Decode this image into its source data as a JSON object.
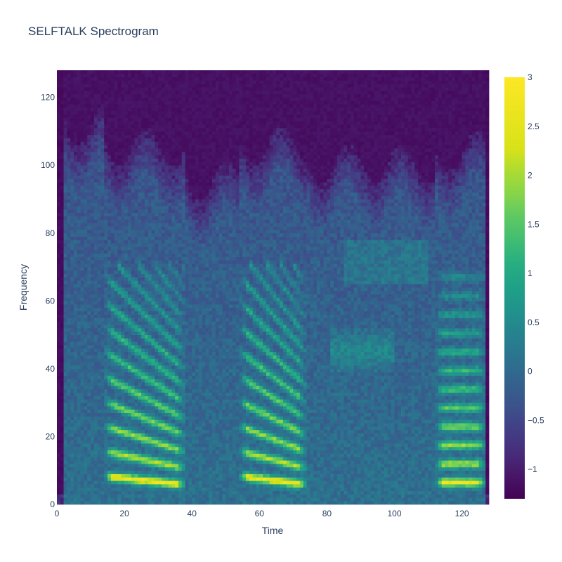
{
  "chart_data": {
    "type": "heatmap",
    "title": "SELFTALK Spectrogram",
    "xlabel": "Time",
    "ylabel": "Frequency",
    "xlim": [
      0,
      127
    ],
    "ylim": [
      0,
      127
    ],
    "x_ticks": [
      "0",
      "20",
      "40",
      "60",
      "80",
      "100",
      "120"
    ],
    "y_ticks": [
      "0",
      "20",
      "40",
      "60",
      "80",
      "100",
      "120"
    ],
    "colorbar": {
      "colorscale": "Viridis",
      "zmin": -1.3,
      "zmax": 3,
      "ticks": [
        "3",
        "2.5",
        "2",
        "1.5",
        "1",
        "0.5",
        "0",
        "−0.5",
        "−1"
      ]
    },
    "segments": [
      {
        "start": 2,
        "end": 15,
        "kind": "noise",
        "top": 112
      },
      {
        "start": 14,
        "end": 38,
        "kind": "voiced",
        "f0": 6.0,
        "top": 105
      },
      {
        "start": 38,
        "end": 54,
        "kind": "noise",
        "top": 95
      },
      {
        "start": 54,
        "end": 74,
        "kind": "voiced",
        "f0": 6.0,
        "top": 106
      },
      {
        "start": 74,
        "end": 112,
        "kind": "noise",
        "top": 100
      },
      {
        "start": 112,
        "end": 127,
        "kind": "voiced-flat",
        "f0": 5.5,
        "top": 104
      }
    ],
    "grid": false
  }
}
